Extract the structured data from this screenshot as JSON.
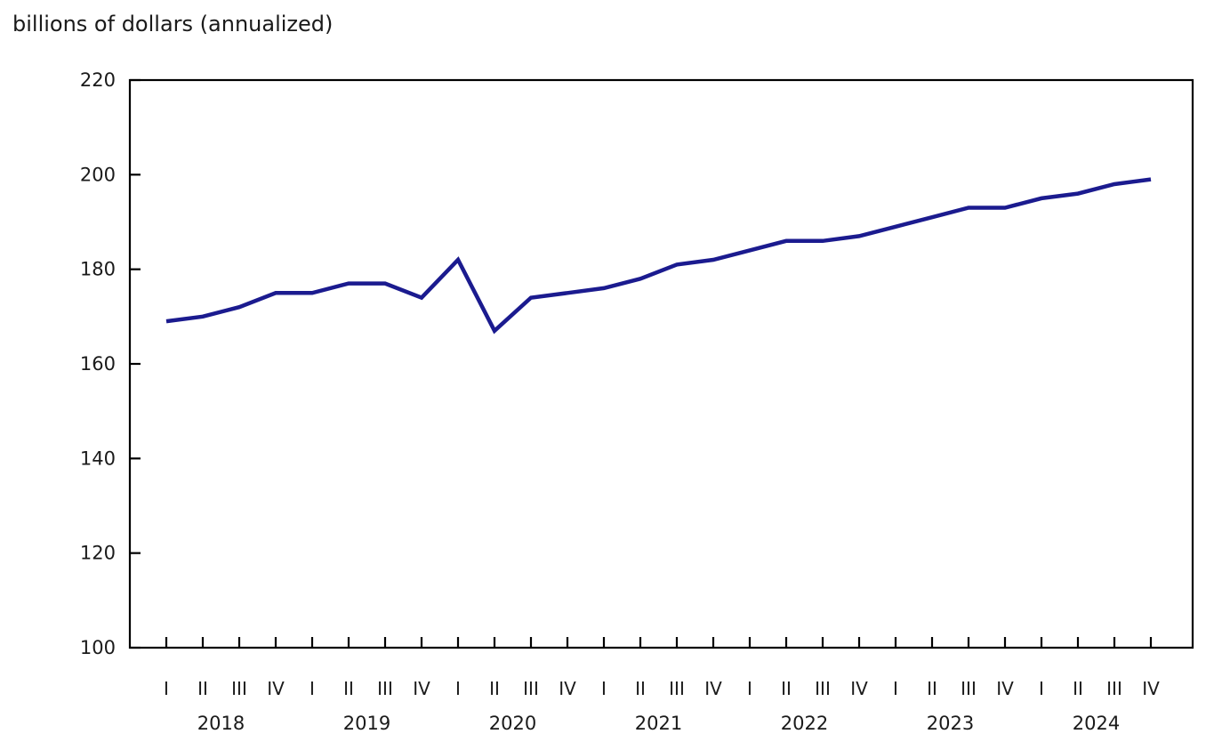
{
  "chart_data": {
    "type": "line",
    "title": "billions of dollars (annualized)",
    "xlabel": "",
    "ylabel": "billions of dollars (annualized)",
    "ylim": [
      100,
      220
    ],
    "y_ticks": [
      100,
      120,
      140,
      160,
      180,
      200,
      220
    ],
    "grid": false,
    "legend_position": "none",
    "line_color": "#1b1b8f",
    "axis_color": "#000000",
    "quarter_tick_labels": [
      "I",
      "II",
      "III",
      "IV",
      "I",
      "II",
      "III",
      "IV",
      "I",
      "II",
      "III",
      "IV",
      "I",
      "II",
      "III",
      "IV",
      "I",
      "II",
      "III",
      "IV",
      "I",
      "II",
      "III",
      "IV",
      "I",
      "II",
      "III",
      "IV"
    ],
    "year_labels": [
      "2018",
      "2019",
      "2020",
      "2021",
      "2022",
      "2023",
      "2024"
    ],
    "categories": [
      "2018 Q1",
      "2018 Q2",
      "2018 Q3",
      "2018 Q4",
      "2019 Q1",
      "2019 Q2",
      "2019 Q3",
      "2019 Q4",
      "2020 Q1",
      "2020 Q2",
      "2020 Q3",
      "2020 Q4",
      "2021 Q1",
      "2021 Q2",
      "2021 Q3",
      "2021 Q4",
      "2022 Q1",
      "2022 Q2",
      "2022 Q3",
      "2022 Q4",
      "2023 Q1",
      "2023 Q2",
      "2023 Q3",
      "2023 Q4",
      "2024 Q1",
      "2024 Q2",
      "2024 Q3",
      "2024 Q4"
    ],
    "series": [
      {
        "name": "billions of dollars (annualized)",
        "values": [
          169,
          170,
          172,
          175,
          175,
          177,
          177,
          174,
          182,
          167,
          174,
          175,
          176,
          178,
          181,
          182,
          184,
          186,
          186,
          187,
          189,
          191,
          193,
          193,
          195,
          196,
          198,
          199
        ]
      }
    ]
  }
}
